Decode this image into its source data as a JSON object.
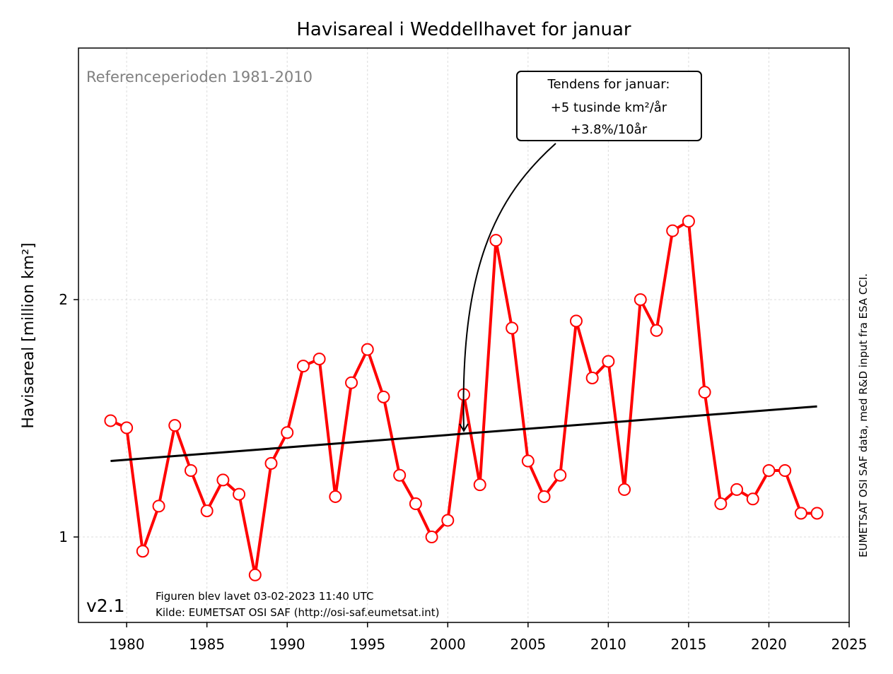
{
  "chart_data": {
    "type": "line",
    "title": "Havisareal i Weddellhavet for januar",
    "xlabel": "",
    "ylabel": "Havisareal [million km²]",
    "xlim": [
      1977,
      2025
    ],
    "ylim": [
      0.64,
      3.06
    ],
    "xticks": [
      1980,
      1985,
      1990,
      1995,
      2000,
      2005,
      2010,
      2015,
      2020,
      2025
    ],
    "yticks": [
      1,
      2
    ],
    "grid": true,
    "series": [
      {
        "name": "Havisareal januar",
        "color": "#ff0000",
        "x": [
          1979,
          1980,
          1981,
          1982,
          1983,
          1984,
          1985,
          1986,
          1987,
          1988,
          1989,
          1990,
          1991,
          1992,
          1993,
          1994,
          1995,
          1996,
          1997,
          1998,
          1999,
          2000,
          2001,
          2002,
          2003,
          2004,
          2005,
          2006,
          2007,
          2008,
          2009,
          2010,
          2011,
          2012,
          2013,
          2014,
          2015,
          2016,
          2017,
          2018,
          2019,
          2020,
          2021,
          2022,
          2023
        ],
        "values": [
          1.49,
          1.46,
          0.94,
          1.13,
          1.47,
          1.28,
          1.11,
          1.24,
          1.18,
          0.84,
          1.31,
          1.44,
          1.72,
          1.75,
          1.17,
          1.65,
          1.79,
          1.59,
          1.26,
          1.14,
          1.0,
          1.07,
          1.6,
          1.22,
          2.25,
          1.88,
          1.32,
          1.17,
          1.26,
          1.91,
          1.67,
          1.74,
          1.2,
          2.0,
          1.87,
          2.29,
          2.33,
          1.61,
          1.14,
          1.2,
          1.16,
          1.28,
          1.28,
          1.1,
          1.1
        ]
      },
      {
        "name": "Tendens",
        "color": "#000000",
        "x": [
          1979,
          2023
        ],
        "values": [
          1.32,
          1.55
        ]
      }
    ],
    "annotation": {
      "lines": [
        "Tendens for januar:",
        "+5 tusinde km²/år",
        "+3.8%/10år"
      ],
      "target_year": 2001
    }
  },
  "labels": {
    "reference": "Referenceperioden 1981-2010",
    "version": "v2.1",
    "created": "Figuren blev lavet 03-02-2023 11:40 UTC",
    "source": "Kilde: EUMETSAT OSI SAF (http://osi-saf.eumetsat.int)",
    "side_note": "EUMETSAT OSI SAF data, med R&D input fra ESA CCI."
  }
}
